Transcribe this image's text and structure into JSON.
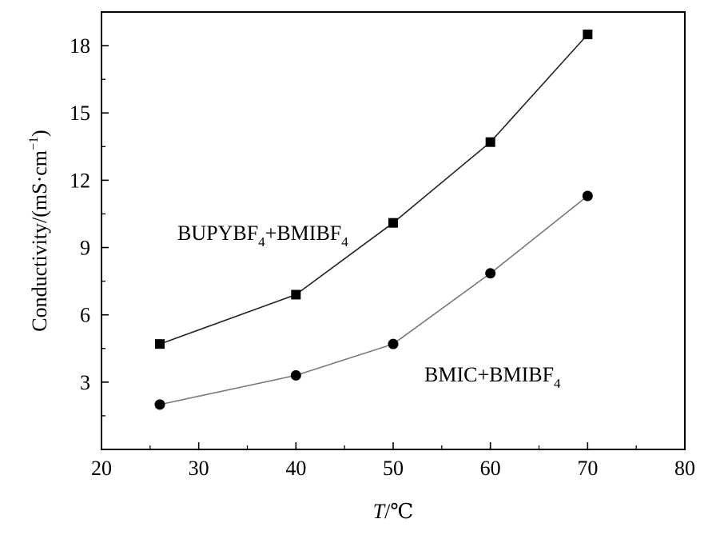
{
  "chart_data": {
    "type": "line",
    "xlabel": {
      "symbol": "T",
      "unit": "/℃"
    },
    "ylabel": {
      "main": "Conductivity/(mS·cm",
      "sup": "−1",
      "close": ")"
    },
    "xlim": [
      20,
      80
    ],
    "ylim": [
      0,
      19.5
    ],
    "xticks": [
      20,
      30,
      40,
      50,
      60,
      70,
      80
    ],
    "yticks": [
      3,
      6,
      9,
      12,
      15,
      18
    ],
    "grid": false,
    "legend": "inline labels",
    "series": [
      {
        "name": {
          "main": "BUPYBF",
          "sub": "4",
          "rest": "+BMIBF",
          "sub2": "4"
        },
        "marker": "square",
        "color": "#000000",
        "line_color": "#222222",
        "x": [
          26,
          40,
          50,
          60,
          70
        ],
        "y": [
          4.7,
          6.9,
          10.1,
          13.7,
          18.5
        ]
      },
      {
        "name": {
          "main": "BMIC+BMIBF",
          "sub": "4",
          "rest": "",
          "sub2": ""
        },
        "marker": "circle",
        "color": "#000000",
        "line_color": "#777777",
        "x": [
          26,
          40,
          50,
          60,
          70
        ],
        "y": [
          2.0,
          3.3,
          4.7,
          7.85,
          11.3
        ]
      }
    ]
  }
}
